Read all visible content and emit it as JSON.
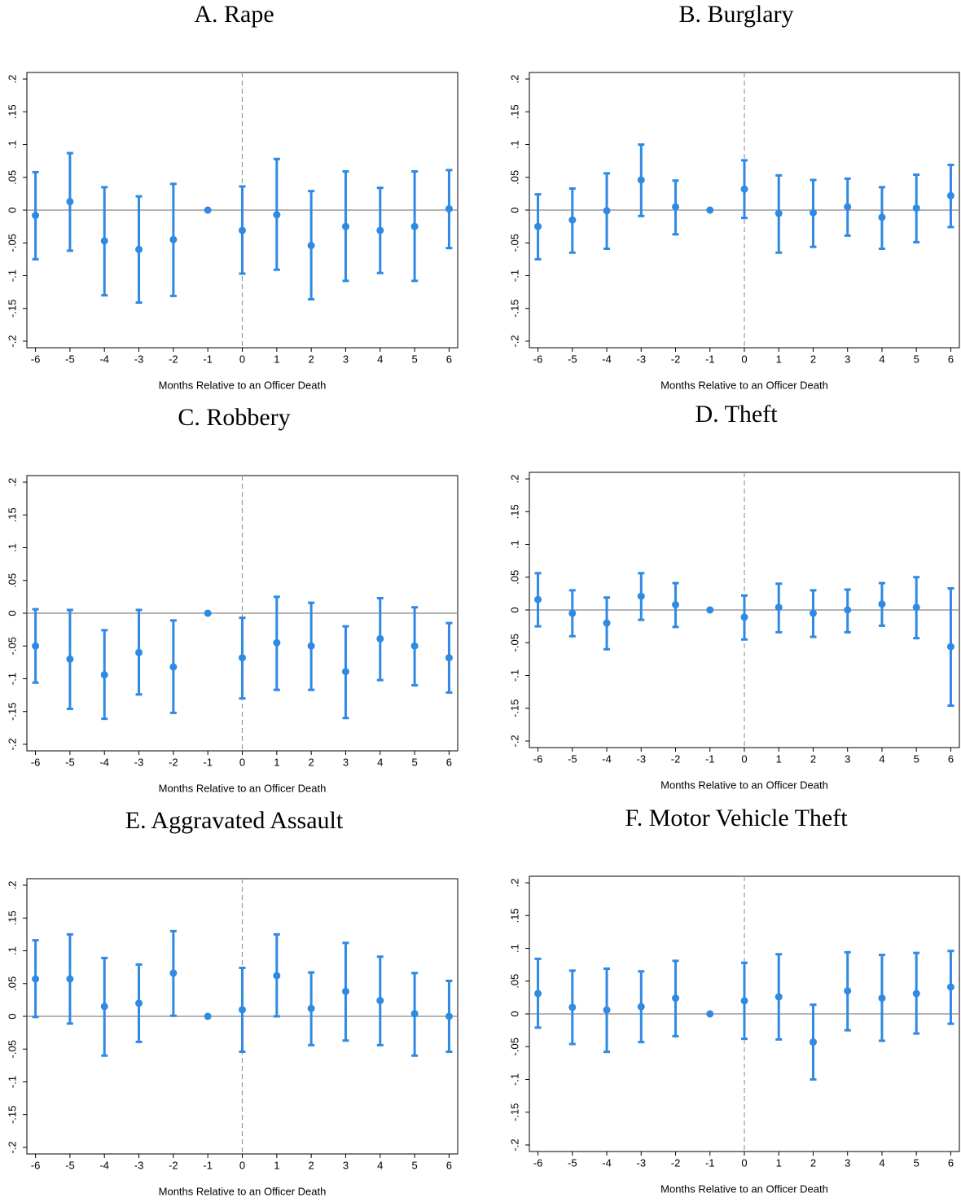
{
  "chart_data": [
    {
      "type": "errorbar",
      "title": "A. Rape",
      "xlabel": "Months Relative to an Officer Death",
      "color": "#2f8ae3",
      "x": [
        -6,
        -5,
        -4,
        -3,
        -2,
        -1,
        0,
        1,
        2,
        3,
        4,
        5,
        6
      ],
      "values": [
        -0.008,
        0.013,
        -0.047,
        -0.06,
        -0.045,
        0,
        -0.031,
        -0.007,
        -0.054,
        -0.025,
        -0.031,
        -0.025,
        0.002
      ],
      "lower": [
        -0.075,
        -0.062,
        -0.13,
        -0.141,
        -0.131,
        0,
        -0.097,
        -0.091,
        -0.136,
        -0.108,
        -0.096,
        -0.108,
        -0.058
      ],
      "upper": [
        0.058,
        0.087,
        0.035,
        0.021,
        0.04,
        0,
        0.036,
        0.078,
        0.029,
        0.059,
        0.034,
        0.059,
        0.061
      ],
      "xlim": [
        -6.25,
        6.25
      ],
      "xticks": [
        -6,
        -5,
        -4,
        -3,
        -2,
        -1,
        0,
        1,
        2,
        3,
        4,
        5,
        6
      ],
      "ylim": [
        -0.21,
        0.21
      ],
      "yticks": [
        {
          "value": 0.2,
          "label": ".2"
        },
        {
          "value": 0.15,
          "label": ".15"
        },
        {
          "value": 0.1,
          "label": ".1"
        },
        {
          "value": 0.05,
          "label": ".05"
        },
        0,
        {
          "value": -0.05,
          "label": "-.05"
        },
        {
          "value": -0.1,
          "label": "-.1"
        },
        {
          "value": -0.15,
          "label": "-.15"
        },
        {
          "value": -0.2,
          "label": "-.2"
        }
      ],
      "xline": 0,
      "yline": 0
    },
    {
      "type": "errorbar",
      "title": "B. Burglary",
      "xlabel": "Months Relative to an Officer Death",
      "color": "#2f8ae3",
      "x": [
        -6,
        -5,
        -4,
        -3,
        -2,
        -1,
        0,
        1,
        2,
        3,
        4,
        5,
        6
      ],
      "values": [
        -0.025,
        -0.015,
        -0.001,
        0.046,
        0.005,
        0,
        0.032,
        -0.005,
        -0.004,
        0.005,
        -0.011,
        0.003,
        0.022
      ],
      "lower": [
        -0.075,
        -0.065,
        -0.059,
        -0.009,
        -0.037,
        0,
        -0.012,
        -0.065,
        -0.056,
        -0.039,
        -0.059,
        -0.049,
        -0.026
      ],
      "upper": [
        0.024,
        0.033,
        0.056,
        0.1,
        0.045,
        0,
        0.076,
        0.053,
        0.046,
        0.048,
        0.035,
        0.054,
        0.069
      ],
      "xlim": [
        -6.25,
        6.25
      ],
      "xticks": [
        -6,
        -5,
        -4,
        -3,
        -2,
        -1,
        0,
        1,
        2,
        3,
        4,
        5,
        6
      ],
      "ylim": [
        -0.21,
        0.21
      ],
      "yticks": [
        {
          "value": 0.2,
          "label": ".2"
        },
        {
          "value": 0.15,
          "label": ".15"
        },
        {
          "value": 0.1,
          "label": ".1"
        },
        {
          "value": 0.05,
          "label": ".05"
        },
        0,
        {
          "value": -0.05,
          "label": "-.05"
        },
        {
          "value": -0.1,
          "label": "-.1"
        },
        {
          "value": -0.15,
          "label": "-.15"
        },
        {
          "value": -0.2,
          "label": "-.2"
        }
      ],
      "xline": 0,
      "yline": 0
    },
    {
      "type": "errorbar",
      "title": "C. Robbery",
      "xlabel": "Months Relative to an Officer Death",
      "color": "#2f8ae3",
      "x": [
        -6,
        -5,
        -4,
        -3,
        -2,
        -1,
        0,
        1,
        2,
        3,
        4,
        5,
        6
      ],
      "values": [
        -0.05,
        -0.07,
        -0.094,
        -0.06,
        -0.082,
        0,
        -0.068,
        -0.045,
        -0.05,
        -0.089,
        -0.039,
        -0.05,
        -0.068
      ],
      "lower": [
        -0.106,
        -0.146,
        -0.161,
        -0.124,
        -0.152,
        0,
        -0.13,
        -0.117,
        -0.117,
        -0.16,
        -0.102,
        -0.11,
        -0.121
      ],
      "upper": [
        0.006,
        0.005,
        -0.026,
        0.005,
        -0.011,
        0,
        -0.007,
        0.025,
        0.016,
        -0.02,
        0.023,
        0.009,
        -0.015
      ],
      "xlim": [
        -6.25,
        6.25
      ],
      "xticks": [
        -6,
        -5,
        -4,
        -3,
        -2,
        -1,
        0,
        1,
        2,
        3,
        4,
        5,
        6
      ],
      "ylim": [
        -0.21,
        0.21
      ],
      "yticks": [
        {
          "value": 0.2,
          "label": ".2"
        },
        {
          "value": 0.15,
          "label": ".15"
        },
        {
          "value": 0.1,
          "label": ".1"
        },
        {
          "value": 0.05,
          "label": ".05"
        },
        0,
        {
          "value": -0.05,
          "label": "-.05"
        },
        {
          "value": -0.1,
          "label": "-.1"
        },
        {
          "value": -0.15,
          "label": "-.15"
        },
        {
          "value": -0.2,
          "label": "-.2"
        }
      ],
      "xline": 0,
      "yline": 0
    },
    {
      "type": "errorbar",
      "title": "D. Theft",
      "xlabel": "Months Relative to an Officer Death",
      "color": "#2f8ae3",
      "x": [
        -6,
        -5,
        -4,
        -3,
        -2,
        -1,
        0,
        1,
        2,
        3,
        4,
        5,
        6
      ],
      "values": [
        0.016,
        -0.005,
        -0.02,
        0.021,
        0.008,
        0,
        -0.011,
        0.004,
        -0.005,
        0.0,
        0.009,
        0.004,
        -0.056
      ],
      "lower": [
        -0.025,
        -0.04,
        -0.06,
        -0.015,
        -0.026,
        0,
        -0.045,
        -0.034,
        -0.041,
        -0.034,
        -0.024,
        -0.043,
        -0.146
      ],
      "upper": [
        0.056,
        0.03,
        0.019,
        0.056,
        0.041,
        0,
        0.022,
        0.04,
        0.03,
        0.031,
        0.041,
        0.05,
        0.033
      ],
      "xlim": [
        -6.25,
        6.25
      ],
      "xticks": [
        -6,
        -5,
        -4,
        -3,
        -2,
        -1,
        0,
        1,
        2,
        3,
        4,
        5,
        6
      ],
      "ylim": [
        -0.21,
        0.21
      ],
      "yticks": [
        {
          "value": 0.2,
          "label": ".2"
        },
        {
          "value": 0.15,
          "label": ".15"
        },
        {
          "value": 0.1,
          "label": ".1"
        },
        {
          "value": 0.05,
          "label": ".05"
        },
        0,
        {
          "value": -0.05,
          "label": "-.05"
        },
        {
          "value": -0.1,
          "label": "-.1"
        },
        {
          "value": -0.15,
          "label": "-.15"
        },
        {
          "value": -0.2,
          "label": "-.2"
        }
      ],
      "xline": 0,
      "yline": 0
    },
    {
      "type": "errorbar",
      "title": "E. Aggravated Assault",
      "xlabel": "Months Relative to an Officer Death",
      "color": "#2f8ae3",
      "x": [
        -6,
        -5,
        -4,
        -3,
        -2,
        -1,
        0,
        1,
        2,
        3,
        4,
        5,
        6
      ],
      "values": [
        0.057,
        0.057,
        0.015,
        0.02,
        0.066,
        0,
        0.01,
        0.062,
        0.012,
        0.038,
        0.024,
        0.004,
        0.0
      ],
      "lower": [
        -0.001,
        -0.011,
        -0.06,
        -0.039,
        0.001,
        0,
        -0.054,
        0.0,
        -0.044,
        -0.037,
        -0.044,
        -0.06,
        -0.054
      ],
      "upper": [
        0.116,
        0.125,
        0.089,
        0.079,
        0.13,
        0,
        0.074,
        0.125,
        0.067,
        0.112,
        0.091,
        0.066,
        0.054
      ],
      "xlim": [
        -6.25,
        6.25
      ],
      "xticks": [
        -6,
        -5,
        -4,
        -3,
        -2,
        -1,
        0,
        1,
        2,
        3,
        4,
        5,
        6
      ],
      "ylim": [
        -0.21,
        0.21
      ],
      "yticks": [
        {
          "value": 0.2,
          "label": ".2"
        },
        {
          "value": 0.15,
          "label": ".15"
        },
        {
          "value": 0.1,
          "label": ".1"
        },
        {
          "value": 0.05,
          "label": ".05"
        },
        0,
        {
          "value": -0.05,
          "label": "-.05"
        },
        {
          "value": -0.1,
          "label": "-.1"
        },
        {
          "value": -0.15,
          "label": "-.15"
        },
        {
          "value": -0.2,
          "label": "-.2"
        }
      ],
      "xline": 0,
      "yline": 0
    },
    {
      "type": "errorbar",
      "title": "F. Motor Vehicle Theft",
      "xlabel": "Months Relative to an Officer Death",
      "color": "#2f8ae3",
      "x": [
        -6,
        -5,
        -4,
        -3,
        -2,
        -1,
        0,
        1,
        2,
        3,
        4,
        5,
        6
      ],
      "values": [
        0.031,
        0.01,
        0.006,
        0.011,
        0.024,
        0,
        0.02,
        0.026,
        -0.043,
        0.035,
        0.024,
        0.031,
        0.041
      ],
      "lower": [
        -0.021,
        -0.046,
        -0.058,
        -0.043,
        -0.034,
        0,
        -0.038,
        -0.039,
        -0.1,
        -0.025,
        -0.041,
        -0.03,
        -0.015
      ],
      "upper": [
        0.084,
        0.066,
        0.069,
        0.065,
        0.081,
        0,
        0.078,
        0.091,
        0.014,
        0.094,
        0.09,
        0.093,
        0.096
      ],
      "xlim": [
        -6.25,
        6.25
      ],
      "xticks": [
        -6,
        -5,
        -4,
        -3,
        -2,
        -1,
        0,
        1,
        2,
        3,
        4,
        5,
        6
      ],
      "ylim": [
        -0.21,
        0.21
      ],
      "yticks": [
        {
          "value": 0.2,
          "label": ".2"
        },
        {
          "value": 0.15,
          "label": ".15"
        },
        {
          "value": 0.1,
          "label": ".1"
        },
        {
          "value": 0.05,
          "label": ".05"
        },
        0,
        {
          "value": -0.05,
          "label": "-.05"
        },
        {
          "value": -0.1,
          "label": "-.1"
        },
        {
          "value": -0.15,
          "label": "-.15"
        },
        {
          "value": -0.2,
          "label": "-.2"
        }
      ],
      "xline": 0,
      "yline": 0
    }
  ]
}
